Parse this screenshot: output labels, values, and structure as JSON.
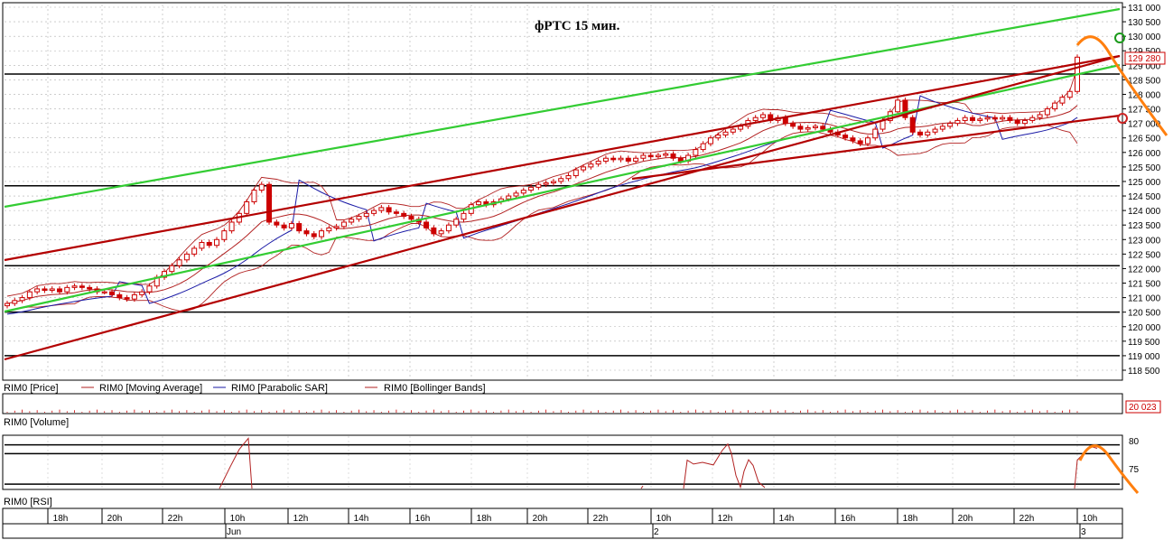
{
  "chart_data": {
    "type": "candlestick",
    "title": "фРТС   15 мин.",
    "colors": {
      "candle": "#cc0000",
      "moving_average": "#b22222",
      "parabolic_sar": "#1a1aa6",
      "bollinger": "#b22222",
      "support_resistance": "#000000",
      "trend_green": "#33cc33",
      "trend_red": "#b30000",
      "projection": "#ff7f0e"
    },
    "price_panel": {
      "ylim": [
        118500,
        131000
      ],
      "y_ticks": [
        "118 500",
        "119 000",
        "119 500",
        "120 000",
        "120 500",
        "121 000",
        "121 500",
        "122 000",
        "122 500",
        "123 000",
        "123 500",
        "124 000",
        "124 500",
        "125 000",
        "125 500",
        "126 000",
        "126 500",
        "127 000",
        "127 500",
        "128 000",
        "128 500",
        "129 000",
        "129 500",
        "130 000",
        "130 500",
        "131 000"
      ],
      "last_price_label": "129 280",
      "last_price": 129280,
      "horizontal_levels": [
        128700,
        124850,
        122100,
        120500,
        119000
      ],
      "legend": [
        "RIM0 [Price]",
        "RIM0 [Moving Average]",
        "RIM0 [Parabolic SAR]",
        "RIM0 [Bollinger Bands]"
      ],
      "candles_close": [
        120800,
        120900,
        121000,
        121200,
        121300,
        121250,
        121300,
        121200,
        121350,
        121400,
        121350,
        121300,
        121200,
        121200,
        121100,
        121000,
        120950,
        121100,
        121200,
        121400,
        121700,
        121900,
        122100,
        122300,
        122500,
        122700,
        122900,
        122800,
        123000,
        123300,
        123600,
        123900,
        124300,
        124700,
        124900,
        123600,
        123500,
        123400,
        123550,
        123300,
        123200,
        123100,
        123300,
        123400,
        123450,
        123600,
        123700,
        123800,
        123900,
        124000,
        124100,
        123950,
        123900,
        123800,
        123700,
        123600,
        123400,
        123200,
        123300,
        123500,
        123700,
        123900,
        124200,
        124300,
        124200,
        124300,
        124400,
        124500,
        124600,
        124700,
        124800,
        124900,
        124950,
        125000,
        125100,
        125200,
        125400,
        125500,
        125600,
        125700,
        125800,
        125750,
        125800,
        125700,
        125800,
        125900,
        125850,
        125900,
        125950,
        125800,
        125700,
        125900,
        126100,
        126300,
        126500,
        126600,
        126700,
        126800,
        126900,
        127100,
        127200,
        127300,
        127100,
        127200,
        127000,
        126900,
        126800,
        126850,
        126900,
        126800,
        126700,
        126600,
        126500,
        126400,
        126300,
        126500,
        126800,
        127100,
        127400,
        127800,
        127200,
        126700,
        126600,
        126700,
        126800,
        126900,
        127000,
        127100,
        127200,
        127100,
        127150,
        127200,
        127150,
        127200,
        127100,
        127000,
        127100,
        127200,
        127300,
        127500,
        127700,
        127900,
        128100,
        129280
      ]
    },
    "volume_panel": {
      "label": "RIM0 [Volume]",
      "last_value_label": "20 023"
    },
    "rsi_panel": {
      "label": "RIM0 [RSI]",
      "ylim": [
        70,
        82
      ],
      "y_ticks": [
        "80",
        "75"
      ],
      "levels": [
        80,
        78,
        71
      ],
      "segments": [
        [
          [
            243,
            70
          ],
          [
            255,
            75
          ],
          [
            265,
            79
          ],
          [
            275,
            81.5
          ],
          [
            279,
            70
          ]
        ],
        [
          [
            710,
            70
          ],
          [
            712,
            70.6
          ]
        ],
        [
          [
            757,
            70
          ],
          [
            761,
            76.5
          ],
          [
            768,
            75.6
          ],
          [
            778,
            76
          ],
          [
            790,
            75.4
          ],
          [
            800,
            78.8
          ],
          [
            806,
            80.2
          ],
          [
            810,
            78
          ],
          [
            815,
            73
          ],
          [
            820,
            70.3
          ],
          [
            824,
            74
          ],
          [
            829,
            76.6
          ],
          [
            834,
            75.3
          ],
          [
            840,
            71.5
          ],
          [
            847,
            70.2
          ]
        ],
        [
          [
            1190,
            70
          ],
          [
            1193,
            76.5
          ],
          [
            1200,
            78
          ],
          [
            1207,
            79.7
          ],
          [
            1215,
            79.2
          ]
        ]
      ]
    },
    "x_axis": {
      "labels": [
        "18h",
        "20h",
        "22h",
        "10h",
        "12h",
        "14h",
        "16h",
        "18h",
        "20h",
        "22h",
        "10h",
        "12h",
        "14h",
        "16h",
        "18h",
        "20h",
        "22h",
        "10h"
      ],
      "dates": [
        "Jun",
        "2",
        "3"
      ]
    }
  }
}
